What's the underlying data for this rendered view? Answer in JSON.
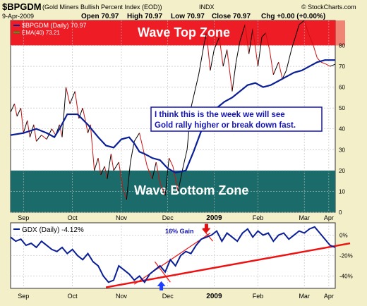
{
  "header": {
    "symbol": "$BPGDM",
    "name": "(Gold Miners Bullish Percent Index (EOD))",
    "exchange": "INDX",
    "date": "9-Apr-2009",
    "open": "Open 70.97",
    "high": "High 70.97",
    "low": "Low 70.97",
    "close": "Close 70.97",
    "change": "Chg +0.00 (+0.00%)",
    "source": "© StockCharts.com"
  },
  "colors": {
    "background": "#f3efc9",
    "top_zone": "#ee1c24",
    "bottom_zone": "#1a6b69",
    "bp_line": "#000000",
    "ema_line": "#0a1f96",
    "red_marks": "#cc1111",
    "gdx_line": "#0a1f96",
    "trendline": "#ee1111",
    "annotation_text": "#1414b4",
    "up_arrow": "#1f3fff",
    "down_arrow": "#e01010"
  },
  "chart_data": [
    {
      "type": "line",
      "title": "$BPGDM (Gold Miners Bullish Percent Index (EOD))",
      "ylim": [
        0,
        92
      ],
      "y_ticks": [
        "0",
        "10",
        "20",
        "30",
        "40",
        "50",
        "60",
        "70",
        "80"
      ],
      "x_ticks": [
        "Sep",
        "Oct",
        "Nov",
        "Dec",
        "2009",
        "Feb",
        "Mar",
        "Apr"
      ],
      "legend": [
        {
          "label": "$BPGDM (Daily) 70.97",
          "color": "#0a1f96"
        },
        {
          "label": "EMA(40) 73.21",
          "color": "#22aa22"
        }
      ],
      "zones": [
        {
          "label": "Wave Top Zone",
          "from": 80,
          "to": 92
        },
        {
          "label": "Wave Bottom Zone",
          "from": 0,
          "to": 20
        }
      ],
      "annotation": [
        "I think this is the week we will see",
        "Gold rally higher or break down fast."
      ],
      "series": [
        {
          "name": "$BPGDM",
          "style": "point-figure",
          "x": [
            0,
            3,
            5,
            8,
            10,
            13,
            15,
            18,
            20,
            24,
            28,
            32,
            35,
            38,
            40,
            43,
            46,
            50,
            53,
            56,
            60,
            62,
            65,
            68,
            70,
            73,
            75,
            78,
            80,
            84,
            87,
            90,
            93,
            96,
            100,
            103,
            106,
            110,
            113,
            116,
            120,
            123,
            126,
            130,
            134,
            137,
            140,
            143,
            146,
            150,
            152,
            155,
            158,
            162,
            165,
            168,
            172,
            175,
            178,
            182,
            185,
            188,
            192,
            195,
            198,
            201,
            204,
            208,
            211,
            214,
            218,
            221,
            224,
            228,
            231,
            235,
            238,
            241,
            245,
            248,
            252
          ],
          "y": [
            48,
            52,
            46,
            50,
            38,
            44,
            36,
            42,
            34,
            37,
            35,
            40,
            37,
            42,
            36,
            60,
            52,
            58,
            45,
            50,
            38,
            42,
            20,
            26,
            18,
            22,
            16,
            28,
            20,
            24,
            12,
            6,
            24,
            34,
            38,
            30,
            22,
            16,
            24,
            14,
            8,
            26,
            22,
            10,
            22,
            30,
            50,
            58,
            66,
            80,
            86,
            68,
            78,
            84,
            70,
            78,
            58,
            72,
            82,
            90,
            76,
            88,
            70,
            84,
            86,
            78,
            66,
            72,
            64,
            68,
            78,
            84,
            90,
            92,
            86,
            80,
            74,
            72,
            71,
            70,
            71
          ]
        },
        {
          "name": "EMA(40)",
          "x": [
            0,
            10,
            20,
            28,
            34,
            38,
            44,
            52,
            60,
            68,
            74,
            80,
            86,
            92,
            96,
            100,
            104,
            110,
            116,
            122,
            128,
            136,
            142,
            148,
            154,
            160,
            166,
            172,
            178,
            184,
            190,
            196,
            202,
            208,
            214,
            220,
            226,
            232,
            238,
            244,
            250,
            252
          ],
          "y": [
            37,
            38,
            40,
            38,
            36,
            40,
            47,
            47,
            42,
            36,
            32,
            31,
            35,
            36,
            33,
            29,
            28,
            26,
            25,
            21,
            19,
            20,
            29,
            39,
            45,
            50,
            53,
            55,
            58,
            61,
            62,
            60,
            61,
            63,
            65,
            67,
            68,
            70,
            72,
            73,
            73,
            73
          ]
        }
      ]
    },
    {
      "type": "line",
      "title": "GDX (Daily) -4.12%",
      "ylim": [
        -52,
        12
      ],
      "y_ticks": [
        "0%",
        "-20%",
        "-40%"
      ],
      "x_ticks": [
        "Sep",
        "Oct",
        "Nov",
        "Dec",
        "2009",
        "Feb",
        "Mar",
        "Apr"
      ],
      "annotations": [
        "16% Gain"
      ],
      "series": [
        {
          "name": "GDX",
          "x": [
            0,
            4,
            8,
            12,
            16,
            20,
            24,
            28,
            32,
            36,
            40,
            44,
            48,
            52,
            56,
            60,
            64,
            68,
            72,
            76,
            80,
            84,
            88,
            92,
            96,
            100,
            104,
            108,
            112,
            116,
            120,
            124,
            128,
            132,
            136,
            140,
            144,
            148,
            152,
            156,
            160,
            164,
            168,
            172,
            176,
            180,
            184,
            188,
            192,
            196,
            200,
            204,
            208,
            212,
            216,
            220,
            224,
            228,
            232,
            236,
            240,
            244,
            248,
            252
          ],
          "y": [
            -2,
            -6,
            -4,
            -10,
            -8,
            -12,
            -6,
            -10,
            -14,
            -16,
            -12,
            -18,
            -14,
            -20,
            -24,
            -18,
            -26,
            -30,
            -40,
            -46,
            -44,
            -30,
            -34,
            -38,
            -44,
            -40,
            -46,
            -38,
            -34,
            -30,
            -36,
            -24,
            -30,
            -20,
            -16,
            -18,
            -10,
            -4,
            -2,
            0,
            4,
            -6,
            2,
            -2,
            -6,
            2,
            6,
            -2,
            4,
            0,
            2,
            -6,
            0,
            2,
            -4,
            0,
            4,
            2,
            6,
            8,
            2,
            -4,
            -10,
            -12
          ]
        }
      ]
    }
  ]
}
